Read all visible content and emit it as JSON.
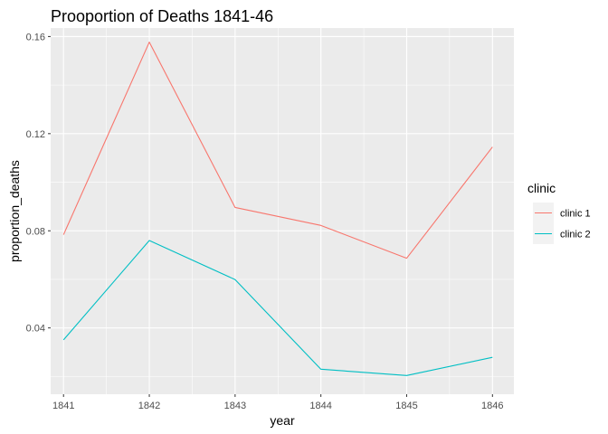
{
  "chart_data": {
    "type": "line",
    "title": "Prooportion of Deaths 1841-46",
    "xlabel": "year",
    "ylabel": "proportion_deaths",
    "x": [
      1841,
      1842,
      1843,
      1844,
      1845,
      1846
    ],
    "x_ticks": [
      "1841",
      "1842",
      "1843",
      "1844",
      "1845",
      "1846"
    ],
    "y_ticks": [
      "0.04",
      "0.08",
      "0.12",
      "0.16"
    ],
    "y_tick_values": [
      0.04,
      0.08,
      0.12,
      0.16
    ],
    "ylim": [
      0.0127,
      0.1635
    ],
    "xlim": [
      1840.85,
      1846.25
    ],
    "grid": true,
    "legend_title": "clinic",
    "legend_position": "right",
    "series": [
      {
        "name": "clinic 1",
        "color": "#F8766D",
        "values": [
          0.0784,
          0.1577,
          0.0896,
          0.0822,
          0.0687,
          0.1145
        ]
      },
      {
        "name": "clinic 2",
        "color": "#00BFC4",
        "values": [
          0.0351,
          0.076,
          0.0599,
          0.023,
          0.0204,
          0.0279
        ]
      }
    ]
  }
}
